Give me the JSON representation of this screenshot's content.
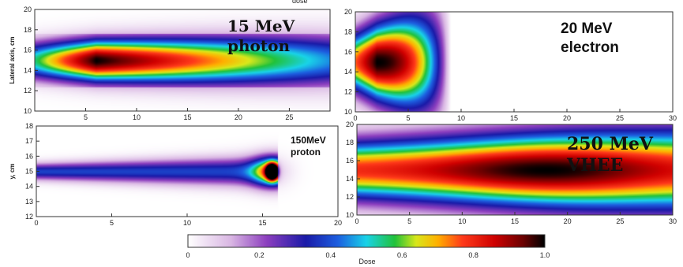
{
  "figure_top_text": "dose",
  "colorbar": {
    "label": "Dose",
    "ticks": [
      "0",
      "0.2",
      "0.4",
      "0.6",
      "0.8",
      "1.0"
    ],
    "stops": [
      {
        "value": 0.0,
        "color": "#ffffff"
      },
      {
        "value": 0.12,
        "color": "#d9b6e3"
      },
      {
        "value": 0.22,
        "color": "#8d3fbf"
      },
      {
        "value": 0.33,
        "color": "#1a1aa8"
      },
      {
        "value": 0.42,
        "color": "#1c5fe0"
      },
      {
        "value": 0.5,
        "color": "#19d3e8"
      },
      {
        "value": 0.58,
        "color": "#21c23a"
      },
      {
        "value": 0.64,
        "color": "#d9e81b"
      },
      {
        "value": 0.7,
        "color": "#ffb000"
      },
      {
        "value": 0.77,
        "color": "#ff3a1a"
      },
      {
        "value": 0.86,
        "color": "#cf0000"
      },
      {
        "value": 0.94,
        "color": "#6b0000"
      },
      {
        "value": 1.0,
        "color": "#000000"
      }
    ]
  },
  "chart_data": [
    {
      "type": "heatmap",
      "label_lines": [
        "15 MeV",
        "photon"
      ],
      "ylabel": "Lateral axis, cm",
      "xlabel": "",
      "xlim": [
        0,
        29
      ],
      "ylim": [
        10,
        20
      ],
      "xticks": [
        "5",
        "10",
        "15",
        "20",
        "25"
      ],
      "yticks": [
        "10",
        "12",
        "14",
        "16",
        "18",
        "20"
      ],
      "beam": {
        "center_y": 15,
        "peak_x": 6,
        "start_x": 0,
        "end_x": 29,
        "falloff": "gradual"
      }
    },
    {
      "type": "heatmap",
      "label_lines": [
        "20 MeV",
        "electron"
      ],
      "ylabel": "",
      "xlabel": "",
      "xlim": [
        0,
        30
      ],
      "ylim": [
        10,
        20
      ],
      "xticks": [
        "0",
        "5",
        "10",
        "15",
        "20",
        "25",
        "30"
      ],
      "yticks": [
        "10",
        "12",
        "14",
        "16",
        "18",
        "20"
      ],
      "beam": {
        "center_y": 15,
        "peak_x": 2,
        "start_x": 0,
        "end_x": 9,
        "falloff": "sharp"
      }
    },
    {
      "type": "heatmap",
      "label_lines": [
        "150MeV",
        "proton"
      ],
      "ylabel": "y, cm",
      "xlabel": "",
      "xlim": [
        0,
        20
      ],
      "ylim": [
        12,
        18
      ],
      "xticks": [
        "0",
        "5",
        "10",
        "15",
        "20"
      ],
      "yticks": [
        "12",
        "13",
        "14",
        "15",
        "16",
        "17",
        "18"
      ],
      "beam": {
        "center_y": 15,
        "peak_x": 15.6,
        "start_x": 0,
        "end_x": 16,
        "falloff": "bragg"
      }
    },
    {
      "type": "heatmap",
      "label_lines": [
        "250 MeV",
        "VHEE"
      ],
      "ylabel": "",
      "xlabel": "",
      "xlim": [
        0,
        30
      ],
      "ylim": [
        10,
        20
      ],
      "xticks": [
        "0",
        "5",
        "10",
        "15",
        "20",
        "25",
        "30"
      ],
      "yticks": [
        "10",
        "12",
        "14",
        "16",
        "18",
        "20"
      ],
      "beam": {
        "center_y": 15,
        "peak_x": 18,
        "start_x": 0,
        "end_x": 30,
        "falloff": "wide"
      }
    }
  ]
}
